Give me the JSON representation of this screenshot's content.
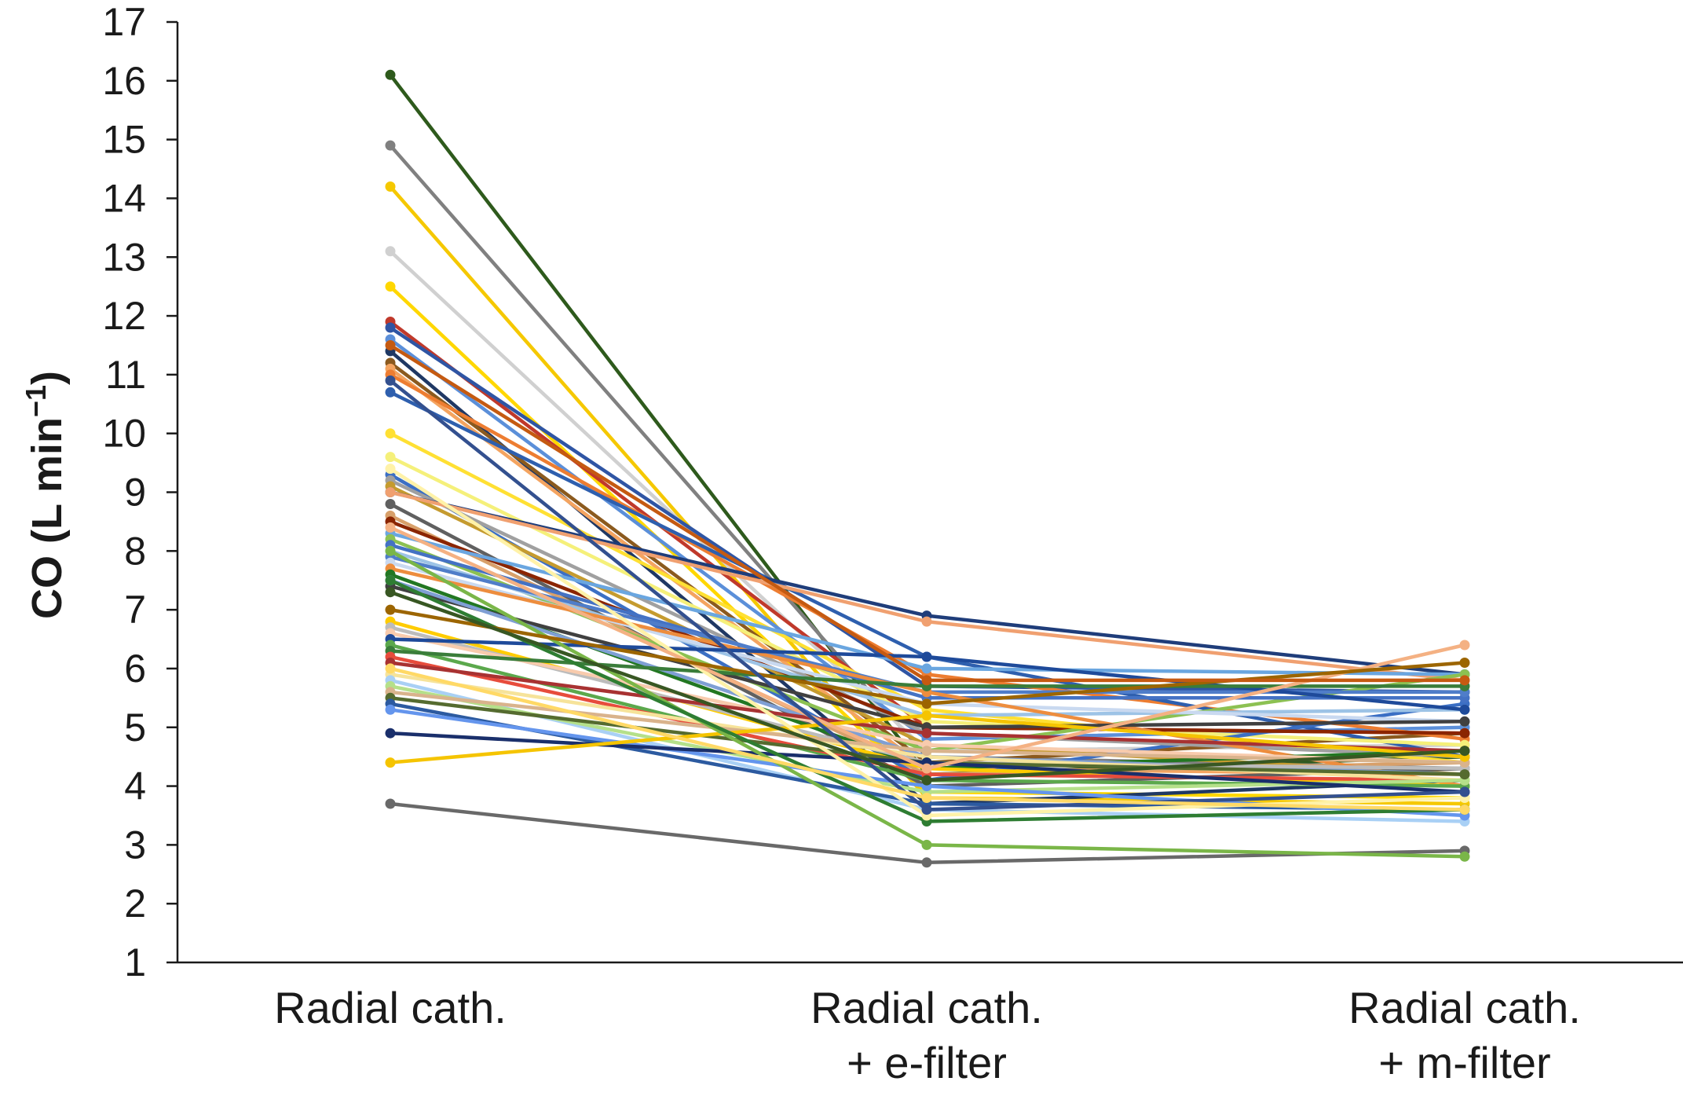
{
  "chart_data": {
    "type": "line",
    "title": "",
    "ylabel": "CO (L min",
    "ylabel_sup": "−1",
    "ylabel_close": ")",
    "ylim": [
      1,
      17
    ],
    "yticks": [
      1,
      2,
      3,
      4,
      5,
      6,
      7,
      8,
      9,
      10,
      11,
      12,
      13,
      14,
      15,
      16,
      17
    ],
    "categories": [
      [
        "Radial cath."
      ],
      [
        "Radial cath.",
        "+ e-filter"
      ],
      [
        "Radial cath.",
        "+ m-filter"
      ]
    ],
    "grid": false,
    "legend": "none",
    "series": [
      {
        "color": "#2e5a1c",
        "values": [
          16.1,
          4.2,
          4.5
        ]
      },
      {
        "color": "#808080",
        "values": [
          14.9,
          4.5,
          4.3
        ]
      },
      {
        "color": "#f5c800",
        "values": [
          14.2,
          3.8,
          3.7
        ]
      },
      {
        "color": "#d0d0d0",
        "values": [
          13.1,
          4.6,
          4.7
        ]
      },
      {
        "color": "#ffd700",
        "values": [
          12.5,
          3.9,
          3.8
        ]
      },
      {
        "color": "#c0392b",
        "values": [
          11.9,
          5.0,
          4.9
        ]
      },
      {
        "color": "#2f55a4",
        "values": [
          11.8,
          5.7,
          5.6
        ]
      },
      {
        "color": "#5b8fd9",
        "values": [
          11.6,
          4.8,
          5.0
        ]
      },
      {
        "color": "#1f3864",
        "values": [
          11.4,
          3.7,
          4.1
        ]
      },
      {
        "color": "#8b5a1e",
        "values": [
          11.2,
          4.4,
          4.9
        ]
      },
      {
        "color": "#f4a460",
        "values": [
          11.1,
          4.3,
          4.2
        ]
      },
      {
        "color": "#ed7d31",
        "values": [
          11.0,
          5.9,
          4.8
        ]
      },
      {
        "color": "#2e5fae",
        "values": [
          10.7,
          6.2,
          4.5
        ]
      },
      {
        "color": "#ffe033",
        "values": [
          10.0,
          5.3,
          4.4
        ]
      },
      {
        "color": "#f5f07a",
        "values": [
          9.6,
          5.1,
          4.7
        ]
      },
      {
        "color": "#3b6fc4",
        "values": [
          9.3,
          4.1,
          5.4
        ]
      },
      {
        "color": "#a0a0a0",
        "values": [
          9.2,
          4.9,
          4.5
        ]
      },
      {
        "color": "#c59b2f",
        "values": [
          9.1,
          4.7,
          4.2
        ]
      },
      {
        "color": "#1f3d7a",
        "values": [
          9.0,
          6.9,
          5.9
        ]
      },
      {
        "color": "#f0a070",
        "values": [
          9.0,
          6.8,
          5.8
        ]
      },
      {
        "color": "#606060",
        "values": [
          8.8,
          4.0,
          4.3
        ]
      },
      {
        "color": "#d8a06a",
        "values": [
          8.6,
          4.2,
          4.4
        ]
      },
      {
        "color": "#8b2500",
        "values": [
          8.5,
          5.0,
          4.9
        ]
      },
      {
        "color": "#6aa6e0",
        "values": [
          8.3,
          6.0,
          5.9
        ]
      },
      {
        "color": "#8cc152",
        "values": [
          8.2,
          4.6,
          5.9
        ]
      },
      {
        "color": "#4472c4",
        "values": [
          8.1,
          5.5,
          5.5
        ]
      },
      {
        "color": "#9dc3e6",
        "values": [
          8.0,
          5.2,
          5.3
        ]
      },
      {
        "color": "#4f7dc9",
        "values": [
          7.9,
          5.6,
          5.6
        ]
      },
      {
        "color": "#c9d9f0",
        "values": [
          7.8,
          5.4,
          5.1
        ]
      },
      {
        "color": "#ed8d3e",
        "values": [
          7.7,
          5.6,
          4.0
        ]
      },
      {
        "color": "#227722",
        "values": [
          7.6,
          4.3,
          4.6
        ]
      },
      {
        "color": "#404040",
        "values": [
          7.4,
          5.0,
          5.1
        ]
      },
      {
        "color": "#7f9fd4",
        "values": [
          7.5,
          4.5,
          4.2
        ]
      },
      {
        "color": "#ffcc00",
        "values": [
          6.8,
          4.3,
          4.0
        ]
      },
      {
        "color": "#bcbcbc",
        "values": [
          6.7,
          4.4,
          4.3
        ]
      },
      {
        "color": "#f8cbad",
        "values": [
          6.6,
          4.7,
          4.4
        ]
      },
      {
        "color": "#1e4a9a",
        "values": [
          6.5,
          6.2,
          5.3
        ]
      },
      {
        "color": "#5ba84c",
        "values": [
          6.4,
          4.1,
          4.0
        ]
      },
      {
        "color": "#3a7d3a",
        "values": [
          6.3,
          5.7,
          5.7
        ]
      },
      {
        "color": "#e74c3c",
        "values": [
          6.2,
          4.2,
          4.1
        ]
      },
      {
        "color": "#a83232",
        "values": [
          6.1,
          4.9,
          4.6
        ]
      },
      {
        "color": "#f6e39a",
        "values": [
          5.9,
          4.5,
          4.1
        ]
      },
      {
        "color": "#a9d0f5",
        "values": [
          5.8,
          3.6,
          3.4
        ]
      },
      {
        "color": "#b5e08a",
        "values": [
          5.7,
          3.9,
          4.1
        ]
      },
      {
        "color": "#d9b38c",
        "values": [
          5.6,
          4.6,
          4.4
        ]
      },
      {
        "color": "#556b2f",
        "values": [
          5.5,
          4.4,
          4.2
        ]
      },
      {
        "color": "#2c5aa0",
        "values": [
          5.4,
          3.7,
          3.6
        ]
      },
      {
        "color": "#6495ed",
        "values": [
          5.3,
          4.0,
          3.5
        ]
      },
      {
        "color": "#1a2f6b",
        "values": [
          4.9,
          4.4,
          3.9
        ]
      },
      {
        "color": "#f5c400",
        "values": [
          4.4,
          5.2,
          4.5
        ]
      },
      {
        "color": "#696969",
        "values": [
          3.7,
          2.7,
          2.9
        ]
      },
      {
        "color": "#7ab648",
        "values": [
          8.0,
          3.0,
          2.8
        ]
      },
      {
        "color": "#2e7d32",
        "values": [
          7.5,
          3.4,
          3.6
        ]
      },
      {
        "color": "#fff2a8",
        "values": [
          9.4,
          3.5,
          3.8
        ]
      },
      {
        "color": "#f4b183",
        "values": [
          8.4,
          4.3,
          6.4
        ]
      },
      {
        "color": "#9c6500",
        "values": [
          7.0,
          5.4,
          6.1
        ]
      },
      {
        "color": "#33508f",
        "values": [
          10.9,
          3.6,
          3.9
        ]
      },
      {
        "color": "#ffd966",
        "values": [
          6.0,
          3.8,
          3.6
        ]
      },
      {
        "color": "#c55a11",
        "values": [
          11.5,
          5.8,
          5.8
        ]
      },
      {
        "color": "#385723",
        "values": [
          7.3,
          4.1,
          4.6
        ]
      }
    ]
  }
}
